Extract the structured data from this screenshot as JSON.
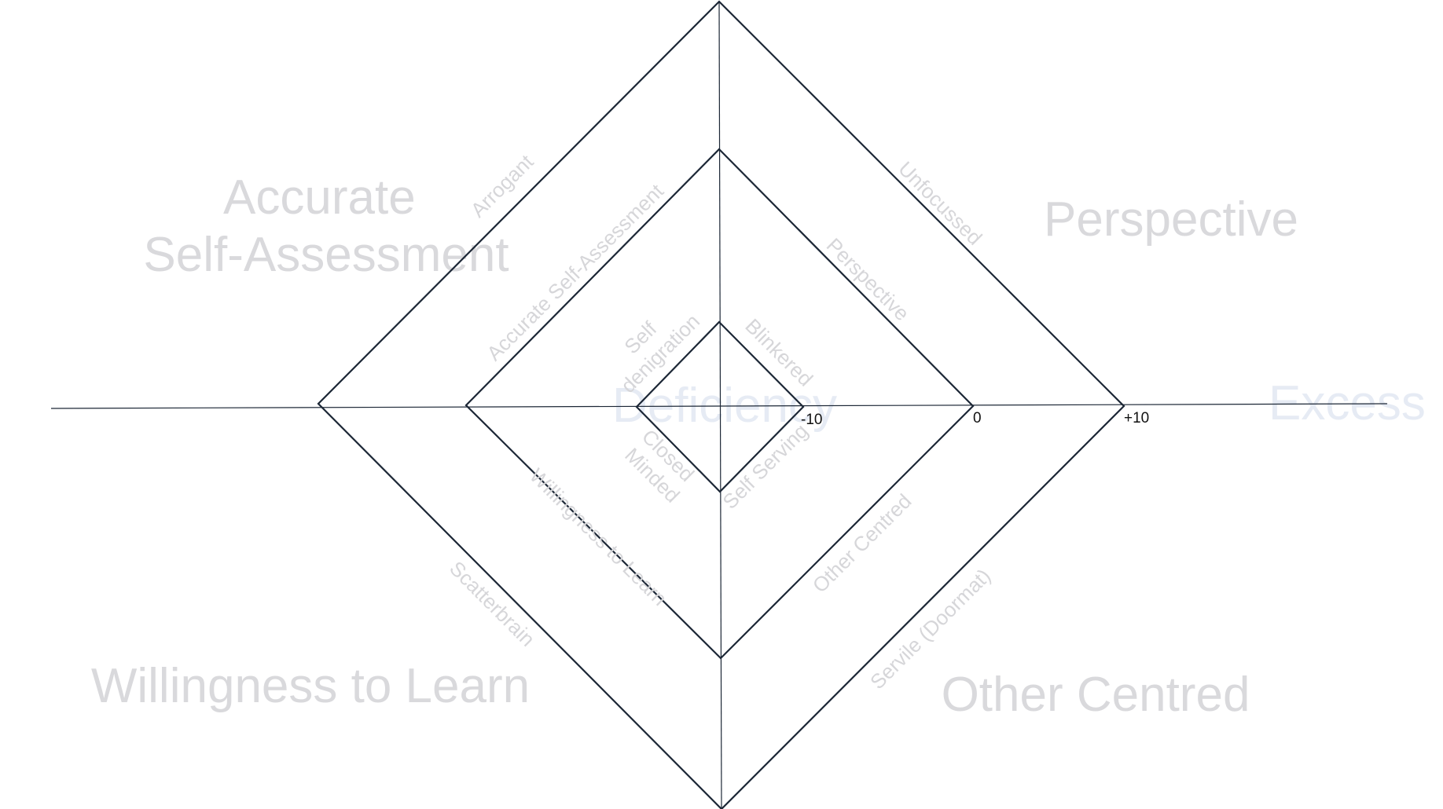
{
  "quadrants": {
    "top_left": [
      "Accurate",
      "Self-Assessment"
    ],
    "top_right": "Perspective",
    "bottom_left": "Willingness to Learn",
    "bottom_right": "Other Centred"
  },
  "axis_labels": {
    "center": "Deficiency",
    "right": "Excess"
  },
  "scale": {
    "inner": "-10",
    "middle": "0",
    "outer": "+10"
  },
  "edge_labels": {
    "outer": {
      "top_left": "Arrogant",
      "top_right": "Unfocussed",
      "bottom_left": "Scatterbrain",
      "bottom_right": "Servile (Doormat)"
    },
    "middle": {
      "top_left": "Accurate Self-Assessment",
      "top_right": "Perspective",
      "bottom_left": "Willingness to Learn",
      "bottom_right": "Other Centred"
    },
    "inner": {
      "top_left": [
        "Self",
        "denigration"
      ],
      "top_right": "Blinkered",
      "bottom_left": [
        "Closed",
        "Minded"
      ],
      "bottom_right": "Self Serving"
    }
  },
  "colors": {
    "lines": "#1c2736",
    "faint_text": "#d9d9dc",
    "center_text": "#e6ebf4",
    "scale_text": "#111111"
  }
}
